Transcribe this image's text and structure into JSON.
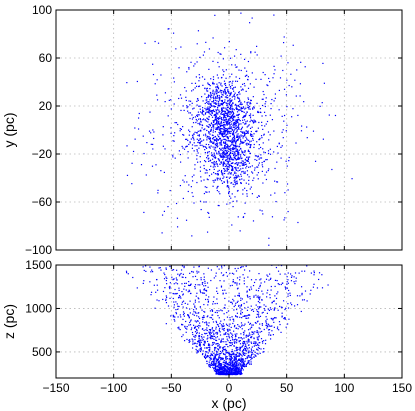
{
  "chart_data": [
    {
      "type": "scatter",
      "panel": "top",
      "xlabel": "",
      "ylabel": "y (pc)",
      "xlim": [
        -150,
        150
      ],
      "ylim": [
        -100,
        100
      ],
      "xticks": [
        -150,
        -100,
        -50,
        0,
        50,
        100,
        150
      ],
      "yticks": [
        -100,
        -60,
        -20,
        20,
        60,
        100
      ],
      "xtick_labels": [
        "",
        "",
        "",
        "",
        "",
        "",
        ""
      ],
      "ytick_labels": [
        "−100",
        "−60",
        "−20",
        "20",
        "60",
        "100"
      ],
      "grid": true,
      "marker_color": "#0000ff",
      "approx_point_count": 2000,
      "distribution": {
        "x_center": -2,
        "x_spread": 27,
        "y_center": 0,
        "y_spread": 30,
        "dense_core_centers": [
          [
            -5,
            15
          ],
          [
            0,
            -18
          ]
        ]
      }
    },
    {
      "type": "scatter",
      "panel": "bottom",
      "xlabel": "x (pc)",
      "ylabel": "z (pc)",
      "xlim": [
        -150,
        150
      ],
      "ylim": [
        200,
        1500
      ],
      "xticks": [
        -150,
        -100,
        -50,
        0,
        50,
        100,
        150
      ],
      "yticks": [
        500,
        1000,
        1500
      ],
      "xtick_labels": [
        "−150",
        "−100",
        "−50",
        "0",
        "50",
        "100",
        "150"
      ],
      "ytick_labels": [
        "500",
        "1000",
        "1500"
      ],
      "grid": true,
      "marker_color": "#0000ff",
      "approx_point_count": 2000,
      "distribution": {
        "shape": "cone_opening_upward",
        "apex_x": 0,
        "apex_z": 200,
        "half_width_at_1500": 100
      }
    }
  ]
}
